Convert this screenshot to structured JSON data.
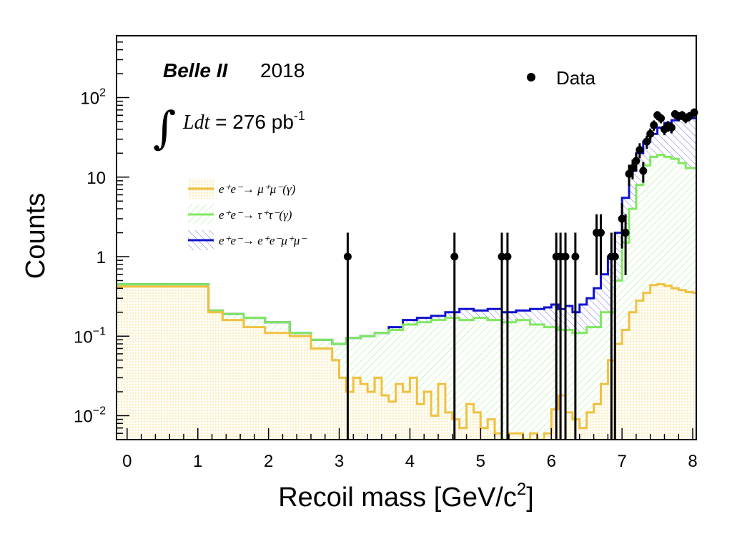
{
  "chart_data": {
    "type": "step-histogram",
    "xlabel": "Recoil mass [GeV/c",
    "xlabel_sup": "2",
    "xlabel_close": "]",
    "ylabel": "Counts",
    "x_range": [
      -0.15,
      8.05
    ],
    "y_range": [
      0.005,
      600
    ],
    "y_scale": "log",
    "x_ticks": [
      "0",
      "1",
      "2",
      "3",
      "4",
      "5",
      "6",
      "7",
      "8"
    ],
    "y_ticks": [
      {
        "value": 0.01,
        "base": "10",
        "exp": "−2"
      },
      {
        "value": 0.1,
        "base": "10",
        "exp": "−1"
      },
      {
        "value": 1,
        "base": "1",
        "exp": ""
      },
      {
        "value": 10,
        "base": "10",
        "exp": ""
      },
      {
        "value": 100,
        "base": "10",
        "exp": "2"
      }
    ],
    "annotations": {
      "experiment": "Belle II",
      "year": "2018",
      "integral_symbol": "∫",
      "integral_text": "Ldt",
      "luminosity": " = 276 pb",
      "luminosity_sup": "-1"
    },
    "legend": {
      "data": "Data",
      "mumu": {
        "lhs": "e⁺e⁻→",
        "rhs": "μ⁺μ⁻(γ)"
      },
      "tautau": {
        "lhs": "e⁺e⁻→",
        "rhs": "τ⁺τ⁻(γ)"
      },
      "eemumu": {
        "lhs": "e⁺e⁻→",
        "rhs": "e⁺e⁻μ⁺μ⁻"
      }
    },
    "colors": {
      "mumu": "#f0c040",
      "tautau": "#80e860",
      "eemumu": "#1010d0",
      "data": "#000000"
    },
    "series": [
      {
        "key": "mumu",
        "edges": [
          -0.15,
          1.15,
          1.35,
          1.65,
          1.95,
          2.3,
          2.6,
          2.9,
          3.0,
          3.1,
          3.2,
          3.3,
          3.4,
          3.5,
          3.6,
          3.7,
          3.8,
          3.9,
          4.0,
          4.1,
          4.2,
          4.3,
          4.4,
          4.5,
          4.6,
          4.7,
          4.8,
          4.9,
          5.0,
          5.1,
          5.2,
          5.3,
          5.4,
          5.5,
          5.6,
          5.7,
          5.8,
          5.9,
          6.0,
          6.1,
          6.2,
          6.3,
          6.4,
          6.5,
          6.6,
          6.7,
          6.8,
          6.9,
          7.0,
          7.1,
          7.2,
          7.3,
          7.4,
          7.5,
          7.6,
          7.7,
          7.8,
          7.9,
          8.0,
          8.05
        ],
        "values": [
          0.42,
          0.2,
          0.16,
          0.13,
          0.11,
          0.1,
          0.07,
          0.05,
          0.03,
          0.02,
          0.03,
          0.025,
          0.02,
          0.03,
          0.018,
          0.015,
          0.025,
          0.02,
          0.03,
          0.014,
          0.02,
          0.01,
          0.025,
          0.011,
          0.009,
          0.007,
          0.014,
          0.011,
          0.007,
          0.009,
          0.006,
          0.005,
          0.006,
          0.006,
          0.005,
          0.006,
          0.005,
          0.006,
          0.012,
          0.018,
          0.011,
          0.009,
          0.007,
          0.011,
          0.014,
          0.025,
          0.05,
          0.08,
          0.12,
          0.2,
          0.28,
          0.35,
          0.44,
          0.45,
          0.43,
          0.4,
          0.38,
          0.36,
          0.35
        ]
      },
      {
        "key": "tautau",
        "edges": [
          -0.15,
          1.15,
          1.35,
          1.65,
          1.95,
          2.3,
          2.6,
          2.9,
          3.1,
          3.3,
          3.5,
          3.7,
          3.9,
          4.1,
          4.3,
          4.5,
          4.7,
          4.9,
          5.1,
          5.3,
          5.5,
          5.7,
          5.9,
          6.1,
          6.3,
          6.5,
          6.7,
          6.9,
          7.0,
          7.1,
          7.2,
          7.3,
          7.4,
          7.5,
          7.6,
          7.7,
          7.8,
          7.9,
          8.05
        ],
        "values": [
          0.45,
          0.21,
          0.19,
          0.17,
          0.15,
          0.11,
          0.09,
          0.08,
          0.095,
          0.1,
          0.11,
          0.12,
          0.14,
          0.15,
          0.16,
          0.17,
          0.16,
          0.17,
          0.16,
          0.15,
          0.16,
          0.14,
          0.13,
          0.12,
          0.11,
          0.13,
          0.2,
          0.5,
          1.5,
          4,
          8,
          14,
          18,
          19,
          18,
          17,
          15,
          13
        ]
      },
      {
        "key": "eemumu",
        "edges": [
          -0.15,
          1.15,
          1.35,
          1.65,
          1.95,
          2.3,
          2.6,
          2.9,
          3.1,
          3.3,
          3.5,
          3.7,
          3.9,
          4.1,
          4.3,
          4.5,
          4.7,
          4.9,
          5.1,
          5.3,
          5.5,
          5.7,
          5.9,
          6.0,
          6.1,
          6.2,
          6.3,
          6.4,
          6.5,
          6.6,
          6.7,
          6.8,
          6.9,
          7.0,
          7.1,
          7.2,
          7.3,
          7.4,
          7.5,
          7.6,
          7.7,
          7.8,
          7.9,
          8.05
        ],
        "values": [
          0.45,
          0.21,
          0.19,
          0.17,
          0.15,
          0.11,
          0.09,
          0.08,
          0.095,
          0.1,
          0.11,
          0.13,
          0.16,
          0.17,
          0.18,
          0.2,
          0.22,
          0.21,
          0.22,
          0.2,
          0.21,
          0.22,
          0.23,
          0.25,
          0.22,
          0.24,
          0.2,
          0.25,
          0.3,
          0.4,
          0.6,
          1.0,
          2.0,
          5.5,
          12,
          20,
          28,
          35,
          42,
          48,
          52,
          55,
          55
        ]
      }
    ],
    "data_points": [
      {
        "x": 3.12,
        "y": 1
      },
      {
        "x": 4.63,
        "y": 1
      },
      {
        "x": 5.3,
        "y": 1
      },
      {
        "x": 5.38,
        "y": 1
      },
      {
        "x": 6.07,
        "y": 1
      },
      {
        "x": 6.13,
        "y": 1
      },
      {
        "x": 6.2,
        "y": 1
      },
      {
        "x": 6.34,
        "y": 1
      },
      {
        "x": 6.64,
        "y": 2
      },
      {
        "x": 6.7,
        "y": 2
      },
      {
        "x": 6.85,
        "y": 1
      },
      {
        "x": 6.9,
        "y": 1
      },
      {
        "x": 7.0,
        "y": 3
      },
      {
        "x": 7.05,
        "y": 2
      },
      {
        "x": 7.1,
        "y": 11
      },
      {
        "x": 7.15,
        "y": 13
      },
      {
        "x": 7.2,
        "y": 16
      },
      {
        "x": 7.25,
        "y": 22
      },
      {
        "x": 7.3,
        "y": 12
      },
      {
        "x": 7.35,
        "y": 28
      },
      {
        "x": 7.4,
        "y": 35
      },
      {
        "x": 7.45,
        "y": 45
      },
      {
        "x": 7.5,
        "y": 60
      },
      {
        "x": 7.55,
        "y": 55
      },
      {
        "x": 7.6,
        "y": 40
      },
      {
        "x": 7.65,
        "y": 44
      },
      {
        "x": 7.7,
        "y": 42
      },
      {
        "x": 7.75,
        "y": 62
      },
      {
        "x": 7.8,
        "y": 58
      },
      {
        "x": 7.85,
        "y": 60
      },
      {
        "x": 7.9,
        "y": 55
      },
      {
        "x": 7.95,
        "y": 58
      },
      {
        "x": 8.02,
        "y": 65
      }
    ]
  }
}
